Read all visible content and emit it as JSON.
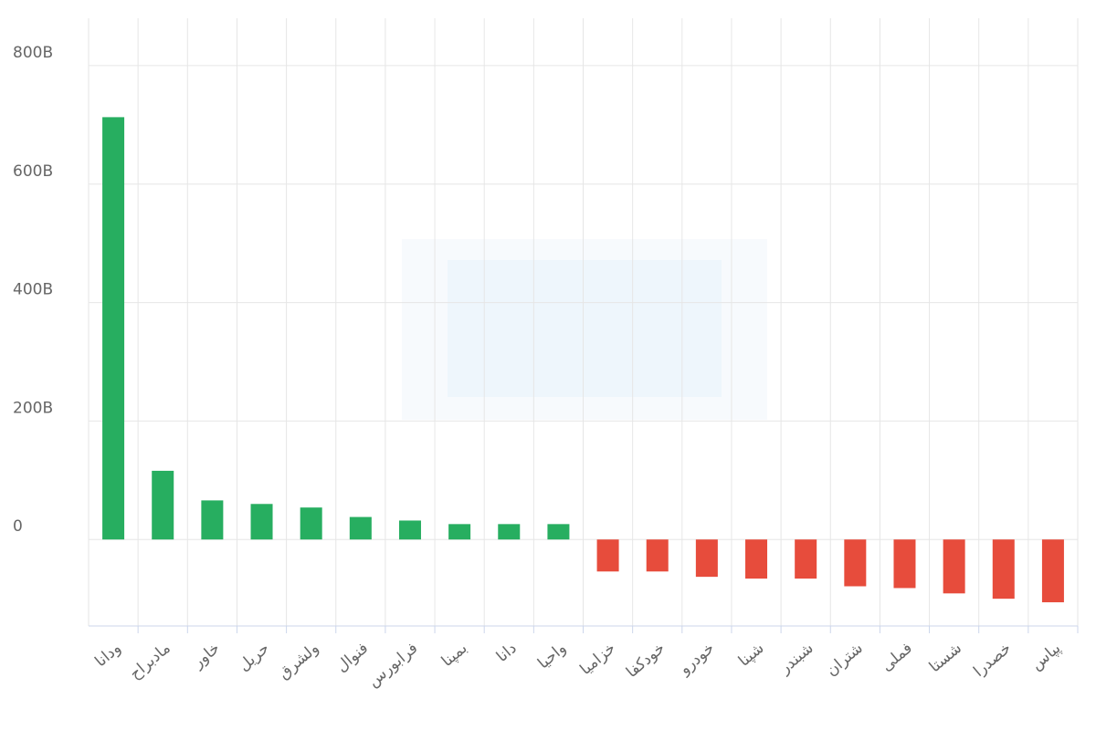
{
  "chart_data": {
    "type": "bar",
    "categories": [
      "ودانا",
      "مادبراح",
      "خاور",
      "حریل",
      "ولشرق",
      "فنوال",
      "فرابورس",
      "بمپنا",
      "دانا",
      "واحیا",
      "خزامیا",
      "خودکفا",
      "خودرو",
      "شپنا",
      "شبندر",
      "شتران",
      "فملی",
      "شستا",
      "خصدرا",
      "پپاس"
    ],
    "values": [
      713,
      116,
      66,
      60,
      54,
      38,
      32,
      26,
      26,
      26,
      -54,
      -54,
      -63,
      -66,
      -66,
      -79,
      -82,
      -91,
      -100,
      -106
    ],
    "positive_color": "#27ae60",
    "negative_color": "#e74c3c",
    "ylim": [
      -146,
      880
    ],
    "yticks": [
      0,
      {
        "value": 200,
        "label": "200B"
      },
      {
        "value": 400,
        "label": "400B"
      },
      {
        "value": 600,
        "label": "600B"
      },
      {
        "value": 800,
        "label": "800B"
      }
    ],
    "grid": true
  }
}
